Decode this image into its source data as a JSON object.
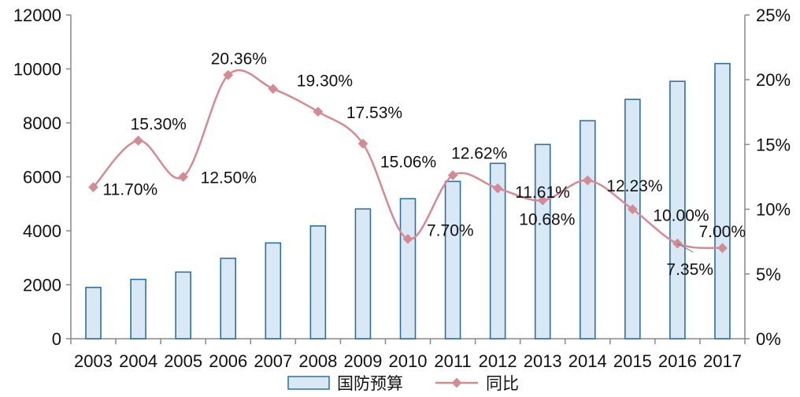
{
  "chart_data": {
    "type": "bar",
    "title": "",
    "xlabel": "",
    "ylabel": "",
    "categories": [
      "2003",
      "2004",
      "2005",
      "2006",
      "2007",
      "2008",
      "2009",
      "2010",
      "2011",
      "2012",
      "2013",
      "2014",
      "2015",
      "2016",
      "2017"
    ],
    "series": [
      {
        "name": "国防预算",
        "type": "bar",
        "axis": "left",
        "values": [
          1900,
          2200,
          2470,
          2980,
          3550,
          4180,
          4810,
          5190,
          5830,
          6500,
          7200,
          8080,
          8870,
          9540,
          10200
        ]
      },
      {
        "name": "同比",
        "type": "line",
        "axis": "right",
        "values": [
          11.7,
          15.3,
          12.5,
          20.36,
          19.3,
          17.53,
          15.06,
          7.7,
          12.62,
          11.61,
          10.68,
          12.23,
          10.0,
          7.35,
          7.0
        ],
        "labels": [
          "11.70%",
          "15.30%",
          "12.50%",
          "20.36%",
          "19.30%",
          "17.53%",
          "15.06%",
          "7.70%",
          "12.62%",
          "11.61%",
          "10.68%",
          "12.23%",
          "10.00%",
          "7.35%",
          "7.00%"
        ]
      }
    ],
    "y_left": {
      "min": 0,
      "max": 12000,
      "ticks": [
        "0",
        "2000",
        "4000",
        "6000",
        "8000",
        "10000",
        "12000"
      ]
    },
    "y_right": {
      "min": 0,
      "max": 25,
      "ticks": [
        "0%",
        "5%",
        "10%",
        "15%",
        "20%",
        "25%"
      ]
    },
    "legend": {
      "position": "bottom",
      "entries": [
        "国防预算",
        "同比"
      ]
    },
    "grid": false,
    "colors": {
      "bar_fill": "#d9e8f5",
      "bar_stroke": "#2f6f9f",
      "line": "#d48a93",
      "axis": "#888888"
    }
  }
}
